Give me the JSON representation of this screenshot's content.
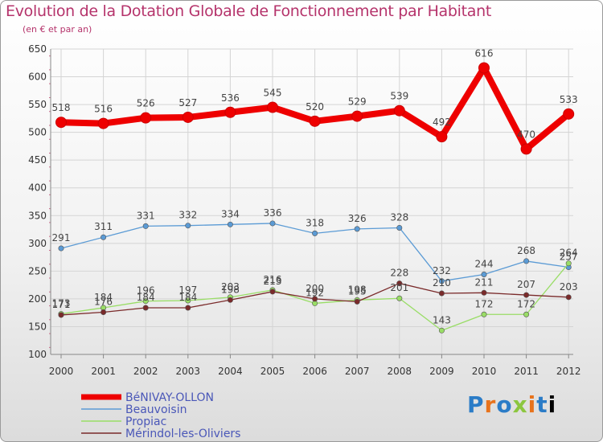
{
  "chart_data": {
    "type": "line",
    "title": "Evolution de la Dotation Globale de Fonctionnement par Habitant",
    "subtitle": "(en € et par an)",
    "xlabel": "",
    "ylabel": "",
    "ylim": [
      100,
      650
    ],
    "yticks": [
      100,
      150,
      200,
      250,
      300,
      350,
      400,
      450,
      500,
      550,
      600,
      650
    ],
    "categories": [
      "2000",
      "2001",
      "2002",
      "2003",
      "2004",
      "2005",
      "2006",
      "2007",
      "2008",
      "2009",
      "2010",
      "2011",
      "2012"
    ],
    "series": [
      {
        "name": "BéNIVAY-OLLON",
        "color": "#ee0000",
        "emphasis": true,
        "values": [
          518,
          516,
          526,
          527,
          536,
          545,
          520,
          529,
          539,
          492,
          616,
          470,
          533
        ]
      },
      {
        "name": "Beauvoisin",
        "color": "#5b9bd5",
        "emphasis": false,
        "values": [
          291,
          311,
          331,
          332,
          334,
          336,
          318,
          326,
          328,
          232,
          244,
          268,
          257
        ]
      },
      {
        "name": "Propiac",
        "color": "#99dd66",
        "emphasis": false,
        "values": [
          173,
          184,
          196,
          197,
          203,
          216,
          192,
          198,
          201,
          143,
          172,
          172,
          264
        ]
      },
      {
        "name": "Mérindol-les-Oliviers",
        "color": "#7a2a2a",
        "emphasis": false,
        "values": [
          171,
          176,
          184,
          184,
          198,
          213,
          200,
          195,
          228,
          210,
          211,
          207,
          203
        ]
      }
    ]
  },
  "brand": {
    "letters": [
      "P",
      "r",
      "o",
      "x",
      "i",
      "t",
      "i"
    ]
  }
}
